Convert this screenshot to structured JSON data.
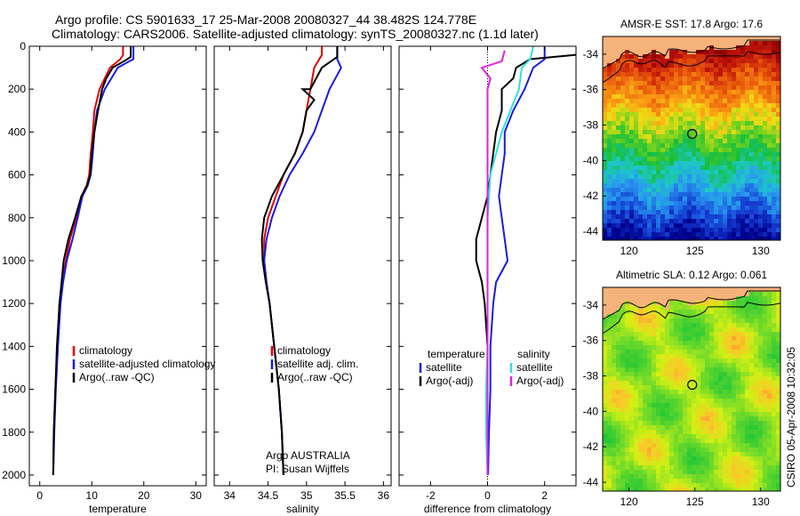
{
  "header": {
    "line1": "Argo profile: CS 5901633_17 25-Mar-2008 20080327_44 38.482S 124.778E",
    "line2": "Climatology: CARS2006. Satellite-adjusted climatology: synTS_20080327.nc (1.1d later)"
  },
  "side_label": "CSIRO 05-Apr-2008 10:32:05",
  "colors": {
    "climatology": "#e00000",
    "satellite": "#1a1ae6",
    "argo": "#000000",
    "salinity_sat": "#30e0e0",
    "salinity_argo": "#e020e0"
  },
  "chart_data": [
    {
      "type": "line",
      "xlabel": "temperature",
      "xlim": [
        -2,
        32
      ],
      "ylim": [
        2050,
        0
      ],
      "xticks": [
        0,
        10,
        20,
        30
      ],
      "yticks": [
        0,
        200,
        400,
        600,
        800,
        1000,
        1200,
        1400,
        1600,
        1800,
        2000
      ],
      "legend": [
        "climatology",
        "satellite-adjusted climatology",
        "Argo(..raw -QC)"
      ],
      "series": [
        {
          "name": "climatology",
          "color": "#e00000",
          "points": [
            [
              16,
              0
            ],
            [
              16,
              40
            ],
            [
              15.5,
              60
            ],
            [
              13.5,
              100
            ],
            [
              11.5,
              200
            ],
            [
              10.5,
              300
            ],
            [
              10.2,
              400
            ],
            [
              9.8,
              500
            ],
            [
              9.5,
              600
            ],
            [
              9,
              650
            ],
            [
              8,
              700
            ],
            [
              7,
              800
            ],
            [
              5.8,
              900
            ],
            [
              5,
              1000
            ],
            [
              4.3,
              1100
            ],
            [
              3.8,
              1200
            ],
            [
              3.4,
              1400
            ],
            [
              3,
              1600
            ],
            [
              2.7,
              1800
            ],
            [
              2.6,
              2000
            ]
          ]
        },
        {
          "name": "satellite-adjusted climatology",
          "color": "#1a1ae6",
          "points": [
            [
              18,
              0
            ],
            [
              18,
              60
            ],
            [
              17.2,
              70
            ],
            [
              15,
              100
            ],
            [
              12.5,
              200
            ],
            [
              11,
              300
            ],
            [
              10.5,
              400
            ],
            [
              10.2,
              500
            ],
            [
              9.8,
              600
            ],
            [
              9.2,
              650
            ],
            [
              8.2,
              700
            ],
            [
              7.3,
              800
            ],
            [
              6.3,
              900
            ],
            [
              5.2,
              1000
            ],
            [
              4.5,
              1100
            ],
            [
              4,
              1200
            ],
            [
              3.5,
              1400
            ],
            [
              3.1,
              1600
            ],
            [
              2.8,
              1800
            ],
            [
              2.6,
              2000
            ]
          ]
        },
        {
          "name": "Argo(..raw -QC)",
          "color": "#000000",
          "points": [
            [
              17.5,
              0
            ],
            [
              17.5,
              50
            ],
            [
              16.5,
              65
            ],
            [
              14,
              100
            ],
            [
              12.8,
              150
            ],
            [
              12,
              200
            ],
            [
              11.2,
              300
            ],
            [
              10.5,
              400
            ],
            [
              10,
              500
            ],
            [
              9.7,
              600
            ],
            [
              9.1,
              650
            ],
            [
              8,
              700
            ],
            [
              6.8,
              800
            ],
            [
              5.5,
              900
            ],
            [
              4.6,
              1000
            ],
            [
              4.2,
              1100
            ],
            [
              3.8,
              1200
            ],
            [
              3.3,
              1400
            ],
            [
              3,
              1600
            ],
            [
              2.7,
              1800
            ],
            [
              2.6,
              2000
            ]
          ]
        }
      ]
    },
    {
      "type": "line",
      "xlabel": "salinity",
      "xlim": [
        33.8,
        36.1
      ],
      "ylim": [
        2050,
        0
      ],
      "xticks": [
        34,
        34.5,
        35,
        35.5,
        36
      ],
      "legend": [
        "climatology",
        "satellite adj. clim.",
        "Argo(..raw -QC)"
      ],
      "annotation": [
        "Argo AUSTRALIA",
        "PI: Susan Wijffels"
      ],
      "series": [
        {
          "name": "climatology",
          "color": "#e00000",
          "points": [
            [
              35.2,
              0
            ],
            [
              35.2,
              40
            ],
            [
              35.1,
              100
            ],
            [
              35.05,
              200
            ],
            [
              35.0,
              300
            ],
            [
              34.95,
              400
            ],
            [
              34.85,
              500
            ],
            [
              34.7,
              600
            ],
            [
              34.6,
              700
            ],
            [
              34.5,
              800
            ],
            [
              34.45,
              900
            ],
            [
              34.45,
              1000
            ],
            [
              34.48,
              1100
            ],
            [
              34.52,
              1200
            ],
            [
              34.58,
              1400
            ],
            [
              34.64,
              1600
            ],
            [
              34.68,
              1800
            ],
            [
              34.7,
              2000
            ]
          ]
        },
        {
          "name": "satellite adj. clim.",
          "color": "#1a1ae6",
          "points": [
            [
              35.4,
              0
            ],
            [
              35.4,
              60
            ],
            [
              35.45,
              100
            ],
            [
              35.3,
              200
            ],
            [
              35.2,
              300
            ],
            [
              35.1,
              400
            ],
            [
              34.95,
              500
            ],
            [
              34.78,
              600
            ],
            [
              34.65,
              700
            ],
            [
              34.55,
              800
            ],
            [
              34.48,
              900
            ],
            [
              34.45,
              1000
            ],
            [
              34.48,
              1100
            ],
            [
              34.52,
              1200
            ],
            [
              34.58,
              1400
            ],
            [
              34.64,
              1600
            ],
            [
              34.68,
              1800
            ],
            [
              34.7,
              2000
            ]
          ]
        },
        {
          "name": "Argo(..raw -QC)",
          "color": "#000000",
          "points": [
            [
              35.4,
              0
            ],
            [
              35.4,
              50
            ],
            [
              35.2,
              100
            ],
            [
              35.05,
              200
            ],
            [
              34.95,
              200
            ],
            [
              35.1,
              250
            ],
            [
              35.0,
              300
            ],
            [
              34.95,
              400
            ],
            [
              34.85,
              500
            ],
            [
              34.7,
              600
            ],
            [
              34.55,
              700
            ],
            [
              34.45,
              800
            ],
            [
              34.42,
              900
            ],
            [
              34.43,
              1000
            ],
            [
              34.47,
              1100
            ],
            [
              34.52,
              1200
            ],
            [
              34.58,
              1400
            ],
            [
              34.64,
              1600
            ],
            [
              34.68,
              1800
            ],
            [
              34.7,
              2000
            ]
          ]
        }
      ]
    },
    {
      "type": "line",
      "xlabel": "difference from climatology",
      "xlim": [
        -3.1,
        3.1
      ],
      "ylim": [
        2050,
        0
      ],
      "xticks": [
        -2,
        0,
        2
      ],
      "legend_left": [
        "temperature",
        "satellite",
        "Argo(-adj)"
      ],
      "legend_right": [
        "salinity",
        "satellite",
        "Argo(-adj)"
      ],
      "series": [
        {
          "name": "temperature satellite",
          "color": "#1a1ae6",
          "points": [
            [
              2.0,
              0
            ],
            [
              2.0,
              60
            ],
            [
              1.6,
              100
            ],
            [
              1.3,
              200
            ],
            [
              0.9,
              300
            ],
            [
              0.6,
              400
            ],
            [
              0.6,
              500
            ],
            [
              0.5,
              600
            ],
            [
              0.4,
              700
            ],
            [
              0.5,
              800
            ],
            [
              0.6,
              900
            ],
            [
              0.7,
              1000
            ],
            [
              0.3,
              1100
            ],
            [
              0.2,
              1200
            ],
            [
              0.1,
              1400
            ],
            [
              0.1,
              1600
            ],
            [
              0.05,
              1800
            ],
            [
              0.02,
              2000
            ]
          ]
        },
        {
          "name": "temperature Argo(-adj)",
          "color": "#000000",
          "points": [
            [
              3.1,
              40
            ],
            [
              1.5,
              60
            ],
            [
              1.0,
              100
            ],
            [
              0.9,
              150
            ],
            [
              0.5,
              200
            ],
            [
              0.5,
              300
            ],
            [
              0.3,
              400
            ],
            [
              0.2,
              500
            ],
            [
              0.1,
              600
            ],
            [
              0.0,
              700
            ],
            [
              -0.2,
              800
            ],
            [
              -0.4,
              900
            ],
            [
              -0.4,
              1000
            ],
            [
              -0.2,
              1100
            ],
            [
              -0.1,
              1200
            ],
            [
              0.0,
              1400
            ],
            [
              0.0,
              1600
            ],
            [
              0.0,
              1800
            ],
            [
              0.0,
              2000
            ]
          ]
        },
        {
          "name": "salinity satellite",
          "color": "#30e0e0",
          "points": [
            [
              1.6,
              0
            ],
            [
              1.5,
              60
            ],
            [
              1.2,
              100
            ],
            [
              1.1,
              200
            ],
            [
              0.8,
              300
            ],
            [
              0.5,
              400
            ],
            [
              0.3,
              500
            ],
            [
              0.1,
              600
            ],
            [
              0.05,
              700
            ],
            [
              0.0,
              800
            ],
            [
              0.0,
              1000
            ],
            [
              0.0,
              1200
            ],
            [
              0.0,
              1400
            ],
            [
              -0.05,
              1600
            ],
            [
              -0.05,
              1800
            ],
            [
              0.0,
              2000
            ]
          ]
        },
        {
          "name": "salinity Argo(-adj)",
          "color": "#e020e0",
          "points": [
            [
              0.6,
              20
            ],
            [
              0.5,
              70
            ],
            [
              -0.2,
              100
            ],
            [
              0.1,
              150
            ],
            [
              0.0,
              200
            ],
            [
              0.0,
              300
            ],
            [
              0.0,
              500
            ],
            [
              0.0,
              800
            ],
            [
              0.0,
              1200
            ],
            [
              0.0,
              1600
            ],
            [
              0.0,
              2000
            ]
          ]
        }
      ]
    },
    {
      "type": "heatmap",
      "title": "AMSR-E SST: 17.8 Argo: 17.6",
      "xlim": [
        118,
        131.5
      ],
      "ylim": [
        -44.5,
        -33
      ],
      "xticks": [
        120,
        125,
        130
      ],
      "yticks": [
        -34,
        -36,
        -38,
        -40,
        -42,
        -44
      ],
      "float_position": [
        124.8,
        -38.5
      ]
    },
    {
      "type": "heatmap",
      "title": "Altimetric SLA: 0.12 Argo: 0.061",
      "xlim": [
        118,
        131.5
      ],
      "ylim": [
        -44.5,
        -33
      ],
      "xticks": [
        120,
        125,
        130
      ],
      "yticks": [
        -34,
        -36,
        -38,
        -40,
        -42,
        -44
      ],
      "float_position": [
        124.8,
        -38.5
      ]
    }
  ]
}
